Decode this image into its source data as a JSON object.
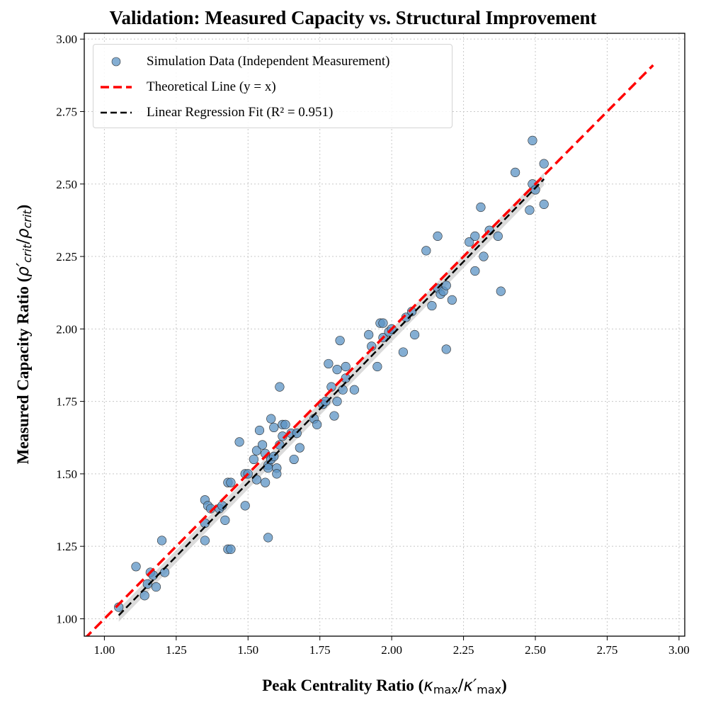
{
  "chart_data": {
    "type": "scatter",
    "title": "Validation: Measured Capacity vs. Structural Improvement",
    "xlabel": "Peak Centrality Ratio (κ_max/κ'_max)",
    "ylabel": "Measured Capacity Ratio (ρ'_crit/ρ_crit)",
    "xlim": [
      0.93,
      3.02
    ],
    "ylim": [
      0.94,
      3.02
    ],
    "xticks": [
      "1.00",
      "1.25",
      "1.50",
      "1.75",
      "2.00",
      "2.25",
      "2.50",
      "2.75",
      "3.00"
    ],
    "yticks": [
      "1.00",
      "1.25",
      "1.50",
      "1.75",
      "2.00",
      "2.25",
      "2.50",
      "2.75",
      "3.00"
    ],
    "grid": true,
    "legend_position": "top-left",
    "colors": {
      "points": "#5b93c4",
      "theory": "#ff0000",
      "fit": "#000000",
      "band": "#bdbdbd"
    },
    "legend": {
      "scatter": "Simulation Data (Independent Measurement)",
      "theory": "Theoretical Line (y = x)",
      "fit": "Linear Regression Fit (R² = 0.951)"
    },
    "theory_line": {
      "slope": 1.0,
      "intercept": 0.0,
      "x": [
        0.93,
        2.91
      ]
    },
    "fit_line": {
      "slope": 1.017,
      "intercept": -0.056,
      "x": [
        1.05,
        2.53
      ],
      "r2": 0.951
    },
    "series": [
      {
        "name": "Simulation Data (Independent Measurement)",
        "points": [
          [
            1.05,
            1.04
          ],
          [
            1.11,
            1.18
          ],
          [
            1.14,
            1.08
          ],
          [
            1.15,
            1.12
          ],
          [
            1.16,
            1.16
          ],
          [
            1.17,
            1.15
          ],
          [
            1.18,
            1.11
          ],
          [
            1.2,
            1.27
          ],
          [
            1.21,
            1.16
          ],
          [
            1.35,
            1.33
          ],
          [
            1.35,
            1.27
          ],
          [
            1.35,
            1.41
          ],
          [
            1.36,
            1.39
          ],
          [
            1.37,
            1.38
          ],
          [
            1.4,
            1.38
          ],
          [
            1.41,
            1.39
          ],
          [
            1.42,
            1.34
          ],
          [
            1.43,
            1.24
          ],
          [
            1.44,
            1.24
          ],
          [
            1.43,
            1.47
          ],
          [
            1.44,
            1.47
          ],
          [
            1.47,
            1.61
          ],
          [
            1.49,
            1.5
          ],
          [
            1.5,
            1.5
          ],
          [
            1.49,
            1.39
          ],
          [
            1.52,
            1.55
          ],
          [
            1.53,
            1.48
          ],
          [
            1.53,
            1.58
          ],
          [
            1.54,
            1.65
          ],
          [
            1.55,
            1.6
          ],
          [
            1.56,
            1.57
          ],
          [
            1.56,
            1.47
          ],
          [
            1.57,
            1.28
          ],
          [
            1.57,
            1.53
          ],
          [
            1.57,
            1.52
          ],
          [
            1.58,
            1.55
          ],
          [
            1.58,
            1.69
          ],
          [
            1.59,
            1.56
          ],
          [
            1.59,
            1.66
          ],
          [
            1.6,
            1.52
          ],
          [
            1.6,
            1.5
          ],
          [
            1.61,
            1.6
          ],
          [
            1.61,
            1.8
          ],
          [
            1.62,
            1.67
          ],
          [
            1.63,
            1.67
          ],
          [
            1.62,
            1.63
          ],
          [
            1.65,
            1.64
          ],
          [
            1.66,
            1.55
          ],
          [
            1.67,
            1.64
          ],
          [
            1.68,
            1.59
          ],
          [
            1.73,
            1.69
          ],
          [
            1.74,
            1.67
          ],
          [
            1.76,
            1.74
          ],
          [
            1.77,
            1.75
          ],
          [
            1.78,
            1.88
          ],
          [
            1.79,
            1.8
          ],
          [
            1.8,
            1.7
          ],
          [
            1.81,
            1.75
          ],
          [
            1.81,
            1.86
          ],
          [
            1.82,
            1.96
          ],
          [
            1.83,
            1.79
          ],
          [
            1.84,
            1.83
          ],
          [
            1.84,
            1.87
          ],
          [
            1.87,
            1.79
          ],
          [
            1.92,
            1.98
          ],
          [
            1.93,
            1.94
          ],
          [
            1.95,
            1.87
          ],
          [
            1.96,
            2.02
          ],
          [
            1.97,
            1.97
          ],
          [
            1.97,
            2.02
          ],
          [
            1.99,
            1.99
          ],
          [
            2.0,
            2.0
          ],
          [
            2.04,
            1.92
          ],
          [
            2.05,
            2.04
          ],
          [
            2.07,
            2.06
          ],
          [
            2.08,
            1.98
          ],
          [
            2.12,
            2.27
          ],
          [
            2.14,
            2.08
          ],
          [
            2.16,
            2.32
          ],
          [
            2.16,
            2.14
          ],
          [
            2.17,
            2.12
          ],
          [
            2.18,
            2.13
          ],
          [
            2.19,
            2.15
          ],
          [
            2.19,
            1.93
          ],
          [
            2.21,
            2.1
          ],
          [
            2.27,
            2.3
          ],
          [
            2.29,
            2.32
          ],
          [
            2.29,
            2.2
          ],
          [
            2.31,
            2.42
          ],
          [
            2.32,
            2.25
          ],
          [
            2.34,
            2.34
          ],
          [
            2.37,
            2.32
          ],
          [
            2.38,
            2.13
          ],
          [
            2.43,
            2.54
          ],
          [
            2.48,
            2.41
          ],
          [
            2.49,
            2.5
          ],
          [
            2.49,
            2.65
          ],
          [
            2.5,
            2.48
          ],
          [
            2.53,
            2.57
          ],
          [
            2.53,
            2.43
          ]
        ]
      }
    ]
  }
}
